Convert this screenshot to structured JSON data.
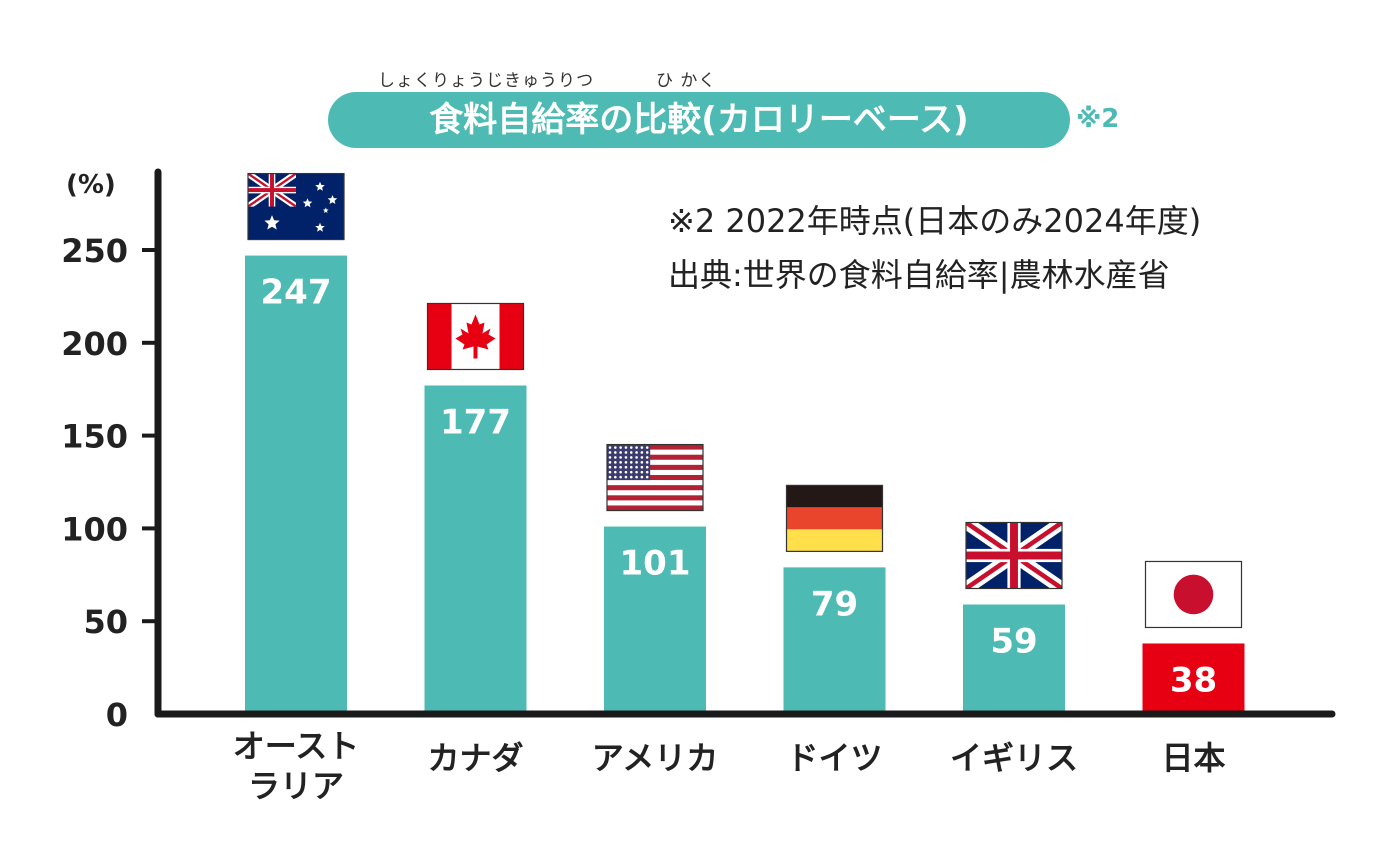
{
  "title": {
    "text": "食料自給率の比較(カロリーベース)",
    "furigana_left": "しょくりょうじきゅうりつ",
    "furigana_right": "ひ かく",
    "note_mark": "※2"
  },
  "notes": {
    "line1": "※2 2022年時点(日本のみ2024年度)",
    "line2": "出典:世界の食料自給率|農林水産省"
  },
  "colors": {
    "teal": "#4dbbb3",
    "red": "#e60012",
    "axis": "#1a1a1a",
    "label_white": "#ffffff"
  },
  "chart_data": {
    "type": "bar",
    "title": "食料自給率の比較(カロリーベース)",
    "ylabel": "(%)",
    "xlabel": "",
    "ylim": [
      0,
      250
    ],
    "yticks": [
      0,
      50,
      100,
      150,
      200,
      250
    ],
    "grid": false,
    "legend": "none",
    "categories": [
      "オースト\nラリア",
      "カナダ",
      "アメリカ",
      "ドイツ",
      "イギリス",
      "日本"
    ],
    "values": [
      247,
      177,
      101,
      79,
      59,
      38
    ],
    "flags": [
      "australia-flag-icon",
      "canada-flag-icon",
      "usa-flag-icon",
      "germany-flag-icon",
      "uk-flag-icon",
      "japan-flag-icon"
    ],
    "bar_colors": [
      "#4dbbb3",
      "#4dbbb3",
      "#4dbbb3",
      "#4dbbb3",
      "#4dbbb3",
      "#e60012"
    ]
  }
}
